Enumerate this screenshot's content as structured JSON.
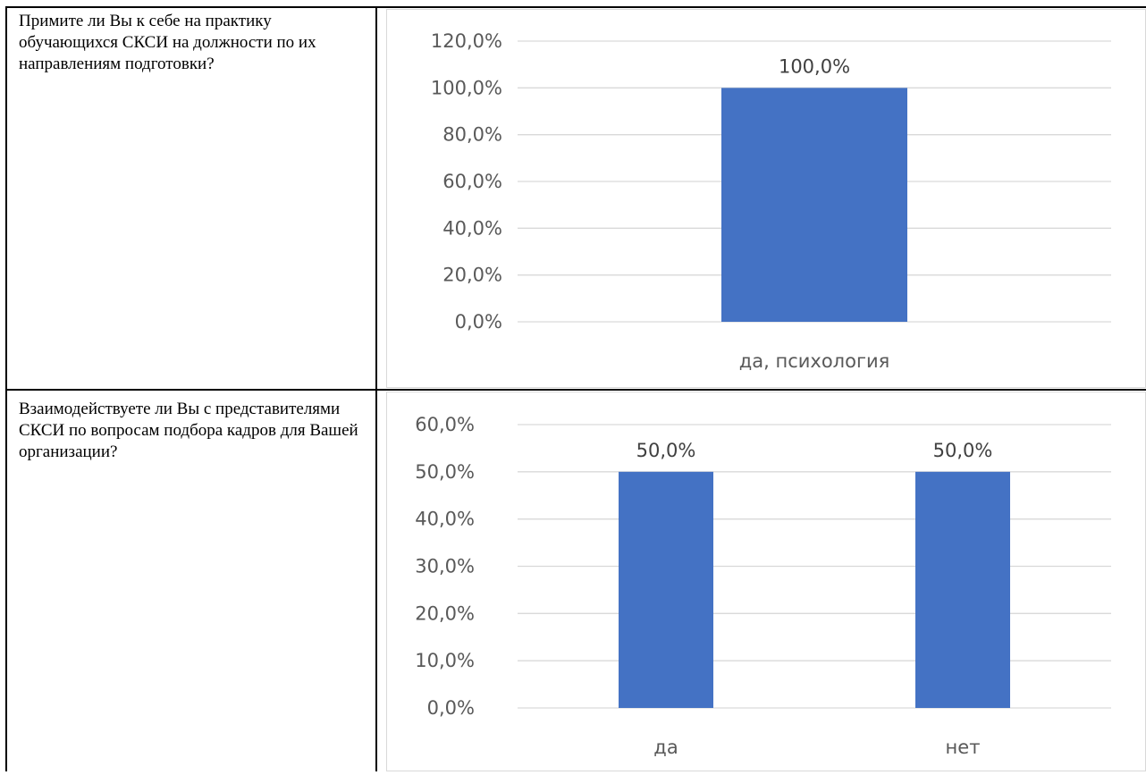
{
  "rows": [
    {
      "question": "Примите ли Вы к себе на практику обучающихся СКСИ на должности по их направлениям подготовки?",
      "chart": {
        "type": "bar",
        "categories": [
          "да, психология"
        ],
        "values": [
          100.0
        ],
        "data_labels": [
          "100,0%"
        ],
        "y_ticks": [
          "0,0%",
          "20,0%",
          "40,0%",
          "60,0%",
          "80,0%",
          "100,0%",
          "120,0%"
        ],
        "ylim": [
          0,
          120
        ],
        "tick_step": 20
      }
    },
    {
      "question": "Взаимодействуете ли Вы с представителями СКСИ по вопросам подбора кадров для Вашей организации?",
      "chart": {
        "type": "bar",
        "categories": [
          "да",
          "нет"
        ],
        "values": [
          50.0,
          50.0
        ],
        "data_labels": [
          "50,0%",
          "50,0%"
        ],
        "y_ticks": [
          "0,0%",
          "10,0%",
          "20,0%",
          "30,0%",
          "40,0%",
          "50,0%",
          "60,0%"
        ],
        "ylim": [
          0,
          60
        ],
        "tick_step": 10
      }
    }
  ],
  "chart_data": [
    {
      "type": "bar",
      "categories": [
        "да, психология"
      ],
      "values": [
        100.0
      ],
      "ylim": [
        0,
        120
      ],
      "grid": true,
      "title": "",
      "xlabel": "",
      "ylabel": ""
    },
    {
      "type": "bar",
      "categories": [
        "да",
        "нет"
      ],
      "values": [
        50.0,
        50.0
      ],
      "ylim": [
        0,
        60
      ],
      "grid": true,
      "title": "",
      "xlabel": "",
      "ylabel": ""
    }
  ],
  "colors": {
    "bar": "#4472c4",
    "grid": "#d9d9d9",
    "tick_text": "#595959",
    "label_text": "#404040"
  }
}
